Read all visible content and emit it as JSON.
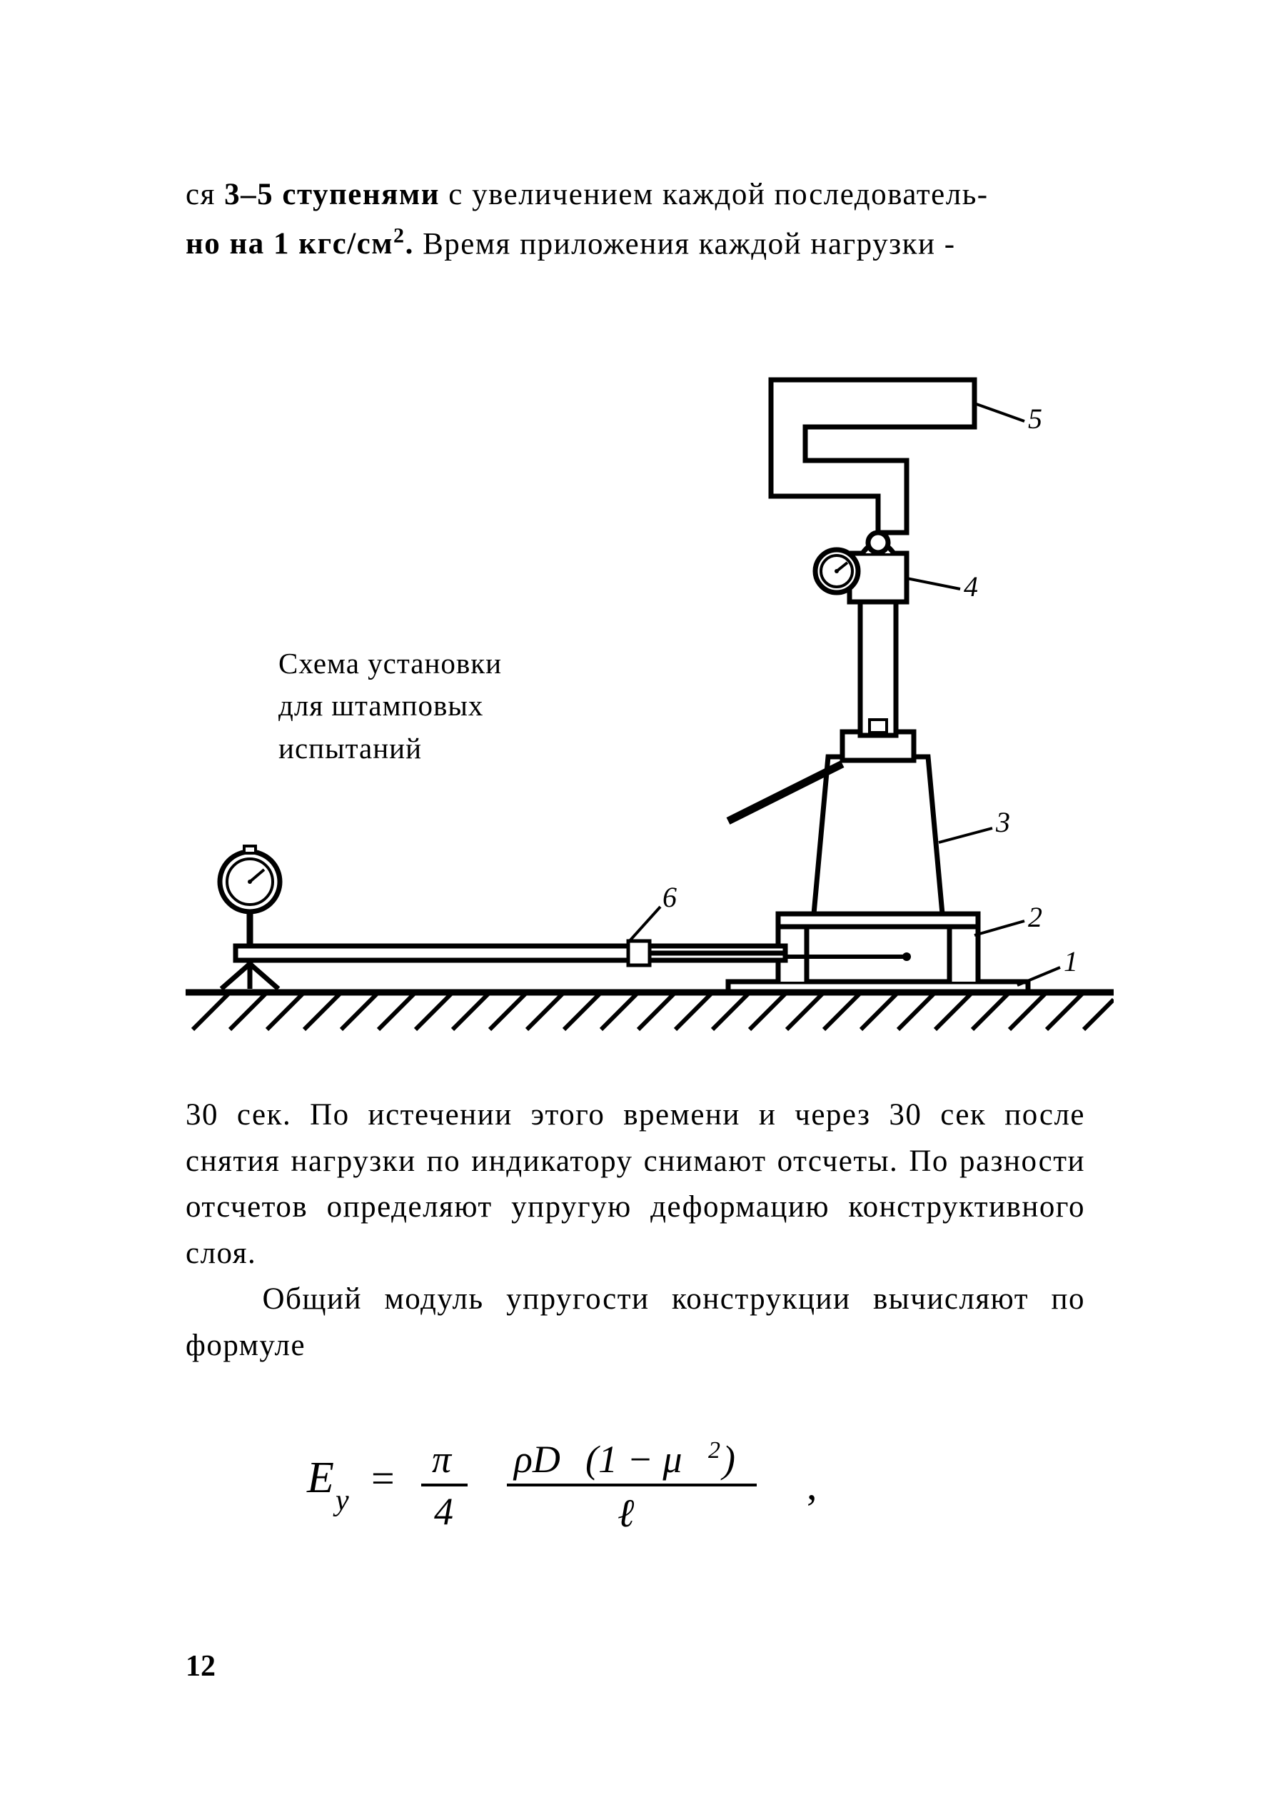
{
  "page": {
    "number": "12",
    "intro_html": "ся <span class='bold'>3–5 ступенями</span> с увеличением каждой последователь-<br><span class='bold'>но на 1 кгс/см<sup>2</sup>.</span> Время приложения каждой нагрузки -",
    "caption_line1": "Схема установки",
    "caption_line2": "для штамповых",
    "caption_line3": "испытаний",
    "body_para1": "30 сек. По истечении этого времени и через 30 сек после снятия нагрузки по индикатору снимают отсчеты. По разности отсчетов определяют упругую деформацию конструктивного слоя.",
    "body_para2": "Общий модуль упругости конструкции вычисляют по формуле",
    "formula": {
      "lhs": "E",
      "lhs_sub": "y",
      "eq": "=",
      "frac1_num": "π",
      "frac1_den": "4",
      "frac2_num_a": "ρD",
      "frac2_num_b": "(1 − μ",
      "frac2_num_exp": "2",
      "frac2_num_c": ")",
      "frac2_den": "ℓ",
      "tail": ","
    }
  },
  "diagram": {
    "labels": {
      "n1": "1",
      "n2": "2",
      "n3": "3",
      "n4": "4",
      "n5": "5",
      "n6": "6"
    },
    "colors": {
      "stroke": "#000000",
      "fill_white": "#ffffff"
    }
  }
}
